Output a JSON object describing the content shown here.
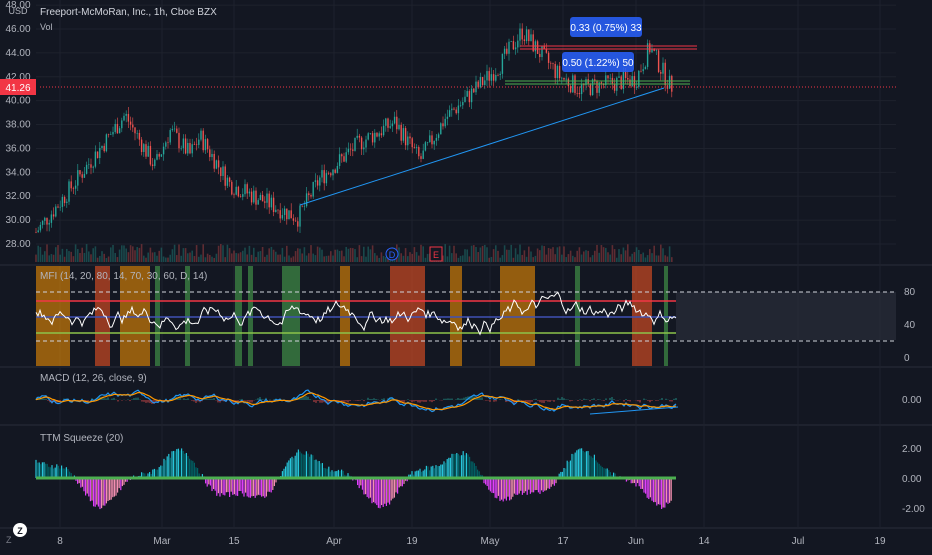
{
  "header": {
    "currency": "USD",
    "symbol_title": "Freeport-McMoRan, Inc., 1h, Cboe BZX",
    "vol_label": "Vol"
  },
  "price_axis": {
    "labels": [
      "48.00",
      "46.00",
      "44.00",
      "42.00",
      "40.00",
      "38.00",
      "36.00",
      "34.00",
      "32.00",
      "30.00",
      "28.00"
    ],
    "current_price": "41.26",
    "current_price_color": "#f23645"
  },
  "mfi_axis": {
    "labels": [
      "80",
      "40",
      "0"
    ]
  },
  "macd_axis": {
    "labels": [
      "0.00"
    ]
  },
  "ttm_axis": {
    "labels": [
      "2.00",
      "0.00",
      "-2.00"
    ]
  },
  "time_axis": {
    "labels": [
      "8",
      "Mar",
      "15",
      "Apr",
      "19",
      "May",
      "17",
      "Jun",
      "14",
      "Jul",
      "19"
    ]
  },
  "indicators": {
    "mfi_title": "MFI (14, 20, 80, 14, 70, 30, 60, D, 14)",
    "macd_title": "MACD (12, 26, close, 9)",
    "ttm_title": "TTM Squeeze (20)"
  },
  "annotations": [
    {
      "text": "0.33 (0.75%) 33",
      "color": "#2962ff"
    },
    {
      "text": "0.50 (1.22%) 50",
      "color": "#2962ff"
    }
  ],
  "event_markers": [
    {
      "letter": "D",
      "color": "#2962ff"
    },
    {
      "letter": "E",
      "color": "#f23645"
    }
  ],
  "footer": {
    "z_icon_label": "Z",
    "z_badge": "Z"
  },
  "chart_data": [
    {
      "type": "candlestick",
      "title": "Freeport-McMoRan, Inc., 1h, Cboe BZX",
      "ylabel": "USD",
      "ylim": [
        27,
        48.5
      ],
      "x_ticks": [
        "8",
        "Mar",
        "15",
        "Apr",
        "19",
        "May",
        "17",
        "Jun",
        "14",
        "Jul",
        "19"
      ],
      "approx_close_path": [
        [
          "start",
          29.0
        ],
        [
          "8",
          31.5
        ],
        [
          "mid-Feb",
          36.0
        ],
        [
          "late-Feb",
          38.8
        ],
        [
          "Mar",
          34.5
        ],
        [
          "Mar",
          37.5
        ],
        [
          "15",
          35.5
        ],
        [
          "15",
          37.0
        ],
        [
          "late-Mar",
          33.0
        ],
        [
          "late-Mar",
          30.2
        ],
        [
          "Apr",
          33.5
        ],
        [
          "Apr",
          36.5
        ],
        [
          "19",
          38.2
        ],
        [
          "19",
          35.0
        ],
        [
          "late-Apr",
          38.5
        ],
        [
          "May",
          40.5
        ],
        [
          "May",
          43.0
        ],
        [
          "peak-May",
          45.8
        ],
        [
          "17",
          42.0
        ],
        [
          "17",
          41.0
        ],
        [
          "Jun",
          41.8
        ],
        [
          "Jun",
          44.5
        ],
        [
          "end",
          41.26
        ]
      ],
      "current_price": 41.26
    },
    {
      "type": "line",
      "title": "MFI (14, 20, 80, 14, 70, 30, 60, D, 14)",
      "ylim": [
        0,
        100
      ],
      "reference_levels": [
        80,
        70,
        60,
        30,
        20
      ],
      "last_value": 40
    },
    {
      "type": "line",
      "title": "MACD (12, 26, close, 9)",
      "series": [
        {
          "name": "",
          "values": []
        }
      ],
      "zero_line": 0.0
    },
    {
      "type": "bar",
      "title": "TTM Squeeze (20)",
      "ylim": [
        -3,
        3
      ],
      "y_ticks": [
        "2.00",
        "0.00",
        "-2.00"
      ],
      "colors": {
        "positive_strong": "#26c6da",
        "positive_weak": "#006064",
        "negative_strong": "#e040fb",
        "negative_weak": "#f48fb1"
      }
    }
  ]
}
